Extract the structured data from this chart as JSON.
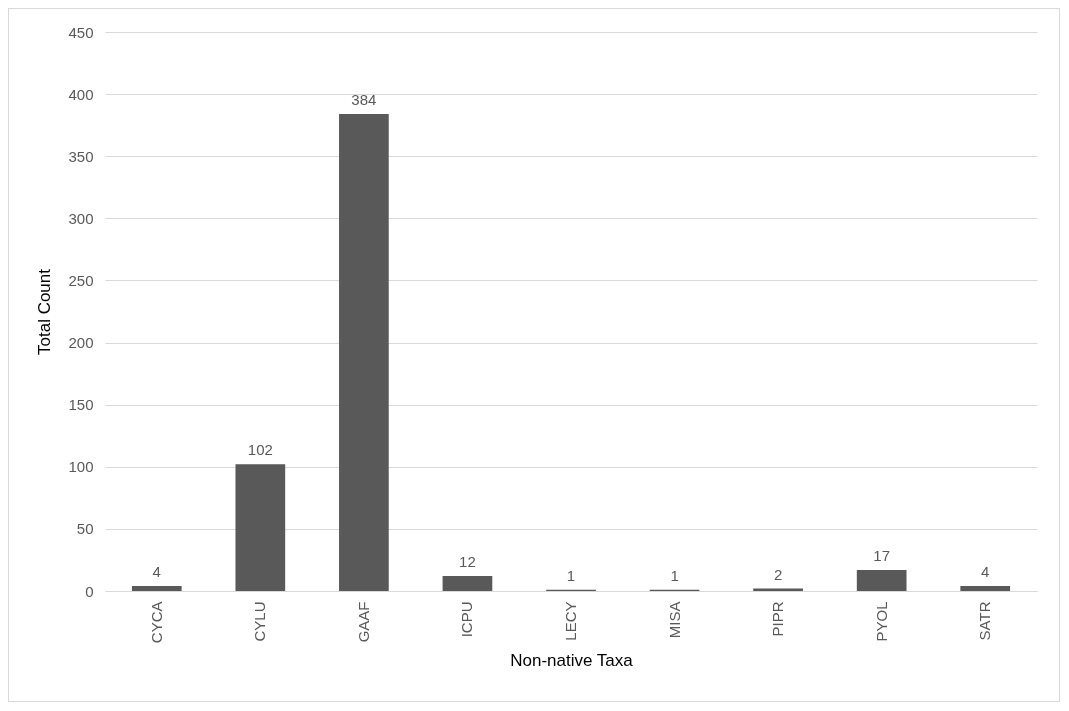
{
  "chart_data": {
    "type": "bar",
    "xlabel": "Non-native Taxa",
    "ylabel": "Total Count",
    "categories": [
      "CYCA",
      "CYLU",
      "GAAF",
      "ICPU",
      "LECY",
      "MISA",
      "PIPR",
      "PYOL",
      "SATR"
    ],
    "values": [
      4,
      102,
      384,
      12,
      1,
      1,
      2,
      17,
      4
    ],
    "color": "#595959",
    "ylim": [
      0,
      450
    ],
    "yticks": [
      0,
      50,
      100,
      150,
      200,
      250,
      300,
      350,
      400,
      450
    ],
    "grid": "y",
    "data_labels": true
  }
}
